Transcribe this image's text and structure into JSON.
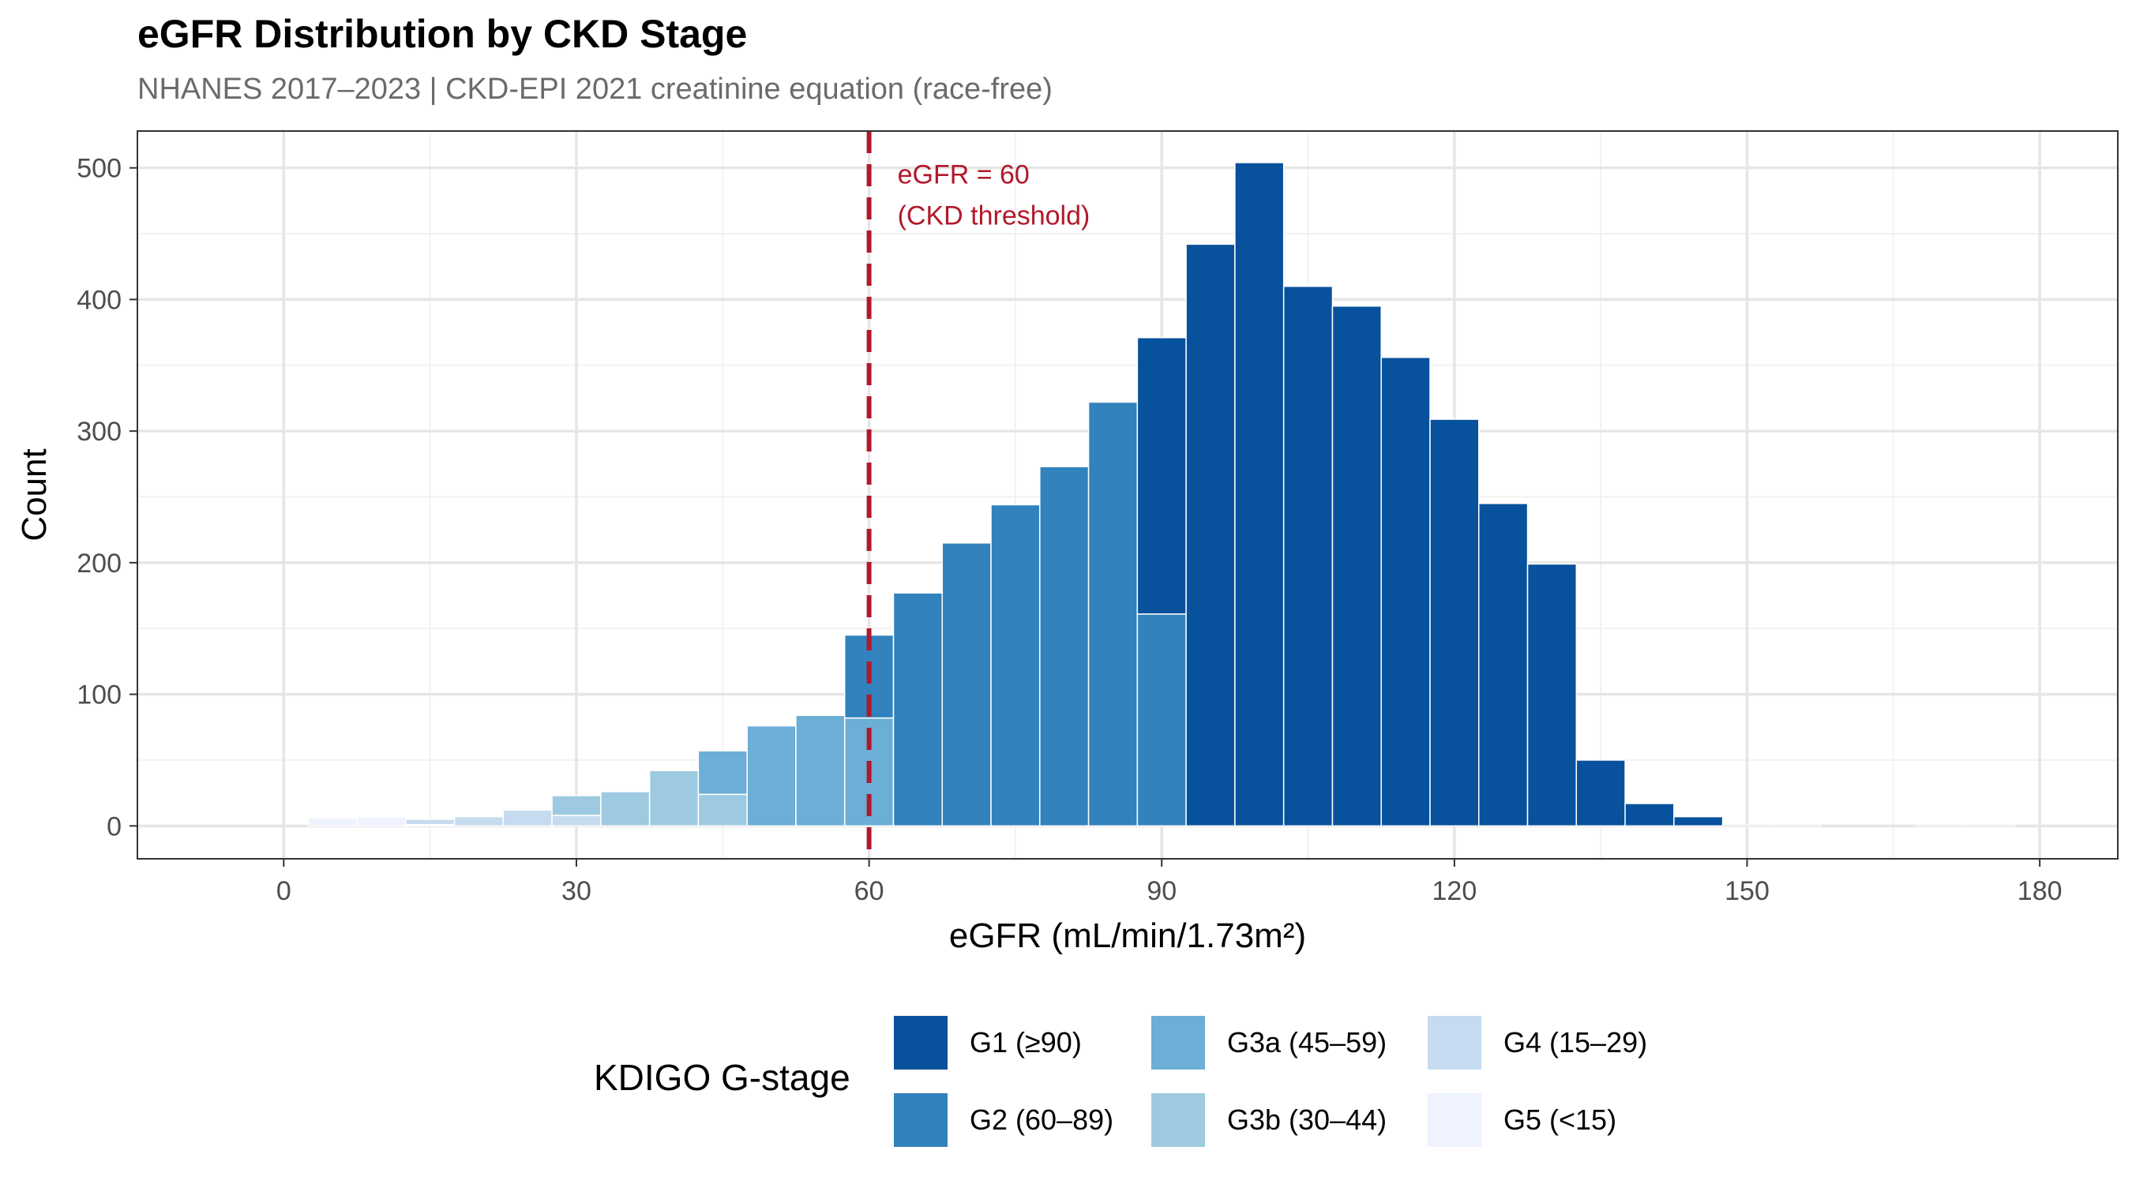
{
  "title": "eGFR Distribution by CKD Stage",
  "subtitle": "NHANES 2017–2023 | CKD-EPI 2021 creatinine equation (race-free)",
  "chart_data": {
    "type": "bar",
    "subtype": "stacked-histogram",
    "title": "eGFR Distribution by CKD Stage",
    "subtitle": "NHANES 2017–2023 | CKD-EPI 2021 creatinine equation (race-free)",
    "xlabel": "eGFR (mL/min/1.73m²)",
    "ylabel": "Count",
    "xlim": [
      -15,
      188
    ],
    "ylim": [
      -25,
      528
    ],
    "x_ticks": [
      0,
      30,
      60,
      90,
      120,
      150,
      180
    ],
    "y_ticks": [
      0,
      100,
      200,
      300,
      400,
      500
    ],
    "grid": true,
    "legend_position": "bottom",
    "legend_title": "KDIGO G-stage",
    "bin_width": 5,
    "series": [
      {
        "name": "G1 (≥90)",
        "color": "#08519c",
        "bins": [
          {
            "x0": 87.5,
            "x1": 92.5,
            "count": 210
          },
          {
            "x0": 92.5,
            "x1": 97.5,
            "count": 442
          },
          {
            "x0": 97.5,
            "x1": 102.5,
            "count": 504
          },
          {
            "x0": 102.5,
            "x1": 107.5,
            "count": 410
          },
          {
            "x0": 107.5,
            "x1": 112.5,
            "count": 395
          },
          {
            "x0": 112.5,
            "x1": 117.5,
            "count": 356
          },
          {
            "x0": 117.5,
            "x1": 122.5,
            "count": 309
          },
          {
            "x0": 122.5,
            "x1": 127.5,
            "count": 245
          },
          {
            "x0": 127.5,
            "x1": 132.5,
            "count": 199
          },
          {
            "x0": 132.5,
            "x1": 137.5,
            "count": 50
          },
          {
            "x0": 137.5,
            "x1": 142.5,
            "count": 17
          },
          {
            "x0": 142.5,
            "x1": 147.5,
            "count": 7
          },
          {
            "x0": 147.5,
            "x1": 152.5,
            "count": 1
          },
          {
            "x0": 152.5,
            "x1": 157.5,
            "count": 1
          },
          {
            "x0": 167.5,
            "x1": 172.5,
            "count": 1
          },
          {
            "x0": 172.5,
            "x1": 177.5,
            "count": 1
          }
        ]
      },
      {
        "name": "G2 (60–89)",
        "color": "#3182bd",
        "bins": [
          {
            "x0": 57.5,
            "x1": 62.5,
            "count": 63
          },
          {
            "x0": 62.5,
            "x1": 67.5,
            "count": 177
          },
          {
            "x0": 67.5,
            "x1": 72.5,
            "count": 215
          },
          {
            "x0": 72.5,
            "x1": 77.5,
            "count": 244
          },
          {
            "x0": 77.5,
            "x1": 82.5,
            "count": 273
          },
          {
            "x0": 82.5,
            "x1": 87.5,
            "count": 322
          },
          {
            "x0": 87.5,
            "x1": 92.5,
            "count": 161
          }
        ]
      },
      {
        "name": "G3a (45–59)",
        "color": "#6baed6",
        "bins": [
          {
            "x0": 42.5,
            "x1": 47.5,
            "count": 33
          },
          {
            "x0": 47.5,
            "x1": 52.5,
            "count": 76
          },
          {
            "x0": 52.5,
            "x1": 57.5,
            "count": 84
          },
          {
            "x0": 57.5,
            "x1": 62.5,
            "count": 82
          }
        ]
      },
      {
        "name": "G3b (30–44)",
        "color": "#9ecae1",
        "bins": [
          {
            "x0": 27.5,
            "x1": 32.5,
            "count": 15
          },
          {
            "x0": 32.5,
            "x1": 37.5,
            "count": 26
          },
          {
            "x0": 37.5,
            "x1": 42.5,
            "count": 42
          },
          {
            "x0": 42.5,
            "x1": 47.5,
            "count": 24
          }
        ]
      },
      {
        "name": "G4 (15–29)",
        "color": "#c6dbef",
        "bins": [
          {
            "x0": 12.5,
            "x1": 17.5,
            "count": 4
          },
          {
            "x0": 17.5,
            "x1": 22.5,
            "count": 7
          },
          {
            "x0": 22.5,
            "x1": 27.5,
            "count": 12
          },
          {
            "x0": 27.5,
            "x1": 32.5,
            "count": 8
          }
        ]
      },
      {
        "name": "G5 (<15)",
        "color": "#eff3ff",
        "bins": [
          {
            "x0": 2.5,
            "x1": 7.5,
            "count": 6
          },
          {
            "x0": 7.5,
            "x1": 12.5,
            "count": 7
          },
          {
            "x0": 12.5,
            "x1": 17.5,
            "count": 1
          }
        ]
      }
    ],
    "annotations": [
      {
        "type": "vline",
        "x": 60,
        "color": "#b2182b",
        "style": "dashed",
        "label_line1": "eGFR = 60",
        "label_line2": "(CKD threshold)"
      }
    ]
  },
  "legend": {
    "title": "KDIGO G-stage",
    "items": [
      {
        "label": "G1 (≥90)",
        "color": "#08519c"
      },
      {
        "label": "G2 (60–89)",
        "color": "#3182bd"
      },
      {
        "label": "G3a (45–59)",
        "color": "#6baed6"
      },
      {
        "label": "G3b (30–44)",
        "color": "#9ecae1"
      },
      {
        "label": "G4 (15–29)",
        "color": "#c6dbef"
      },
      {
        "label": "G5 (<15)",
        "color": "#eff3ff"
      }
    ]
  }
}
